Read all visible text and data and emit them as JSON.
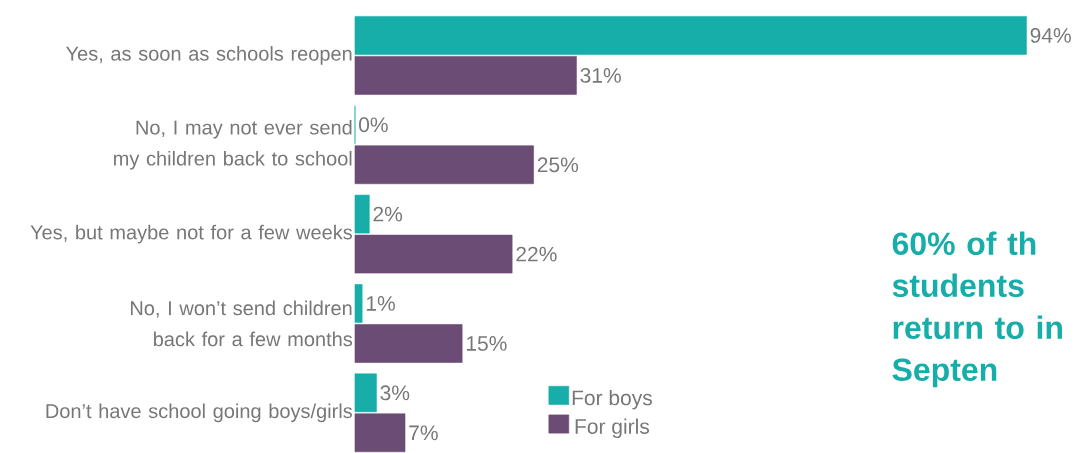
{
  "chart_data": {
    "type": "bar",
    "orientation": "horizontal",
    "categories": [
      "Yes, as soon as schools reopen",
      "No, I may not ever send my children back to school",
      "Yes, but maybe not for a few weeks",
      "No, I won’t send children back for a few months",
      "Don’t have school going boys/girls"
    ],
    "series": [
      {
        "name": "For boys",
        "color": "#17ada9",
        "values": [
          94,
          0,
          2,
          1,
          3
        ],
        "value_labels": [
          "94%",
          "0%",
          "2%",
          "1%",
          "3%"
        ]
      },
      {
        "name": "For girls",
        "color": "#6b4c74",
        "values": [
          31,
          25,
          22,
          15,
          7
        ],
        "value_labels": [
          "31%",
          "25%",
          "22%",
          "15%",
          "7%"
        ]
      }
    ],
    "legend": "bottom",
    "annotations": [
      "60% of th students return to in Septen"
    ]
  }
}
